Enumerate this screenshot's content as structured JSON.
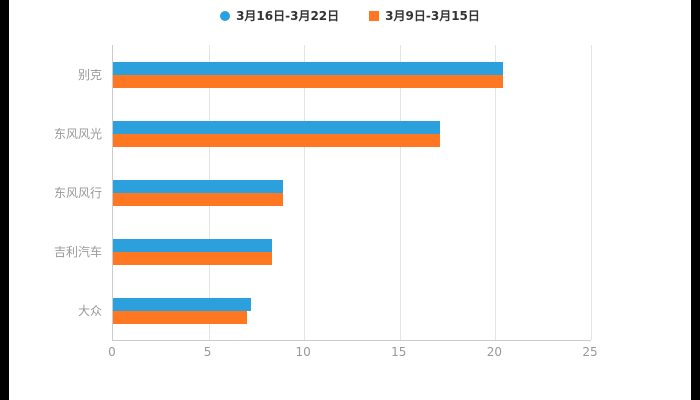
{
  "chart_data": {
    "type": "bar",
    "orientation": "horizontal",
    "title": "",
    "xlabel": "",
    "ylabel": "",
    "xlim": [
      0,
      25
    ],
    "xticks": [
      0,
      5,
      10,
      15,
      20,
      25
    ],
    "grid": true,
    "legend_position": "top",
    "categories": [
      "别克",
      "东风风光",
      "东风风行",
      "吉利汽车",
      "大众"
    ],
    "series": [
      {
        "name": "3月16日-3月22日",
        "color": "#2BA0DC",
        "marker": "circle",
        "values": [
          20.4,
          17.1,
          8.9,
          8.3,
          7.2
        ]
      },
      {
        "name": "3月9日-3月15日",
        "color": "#FF7721",
        "marker": "square",
        "values": [
          20.4,
          17.1,
          8.9,
          8.3,
          7.0
        ]
      }
    ]
  },
  "colors": {
    "background": "#ffffff",
    "edge_bars": "#000000",
    "gridline": "#e4e4e4",
    "axis_line": "#cccccc",
    "axis_text": "#999999",
    "legend_text": "#333333"
  }
}
